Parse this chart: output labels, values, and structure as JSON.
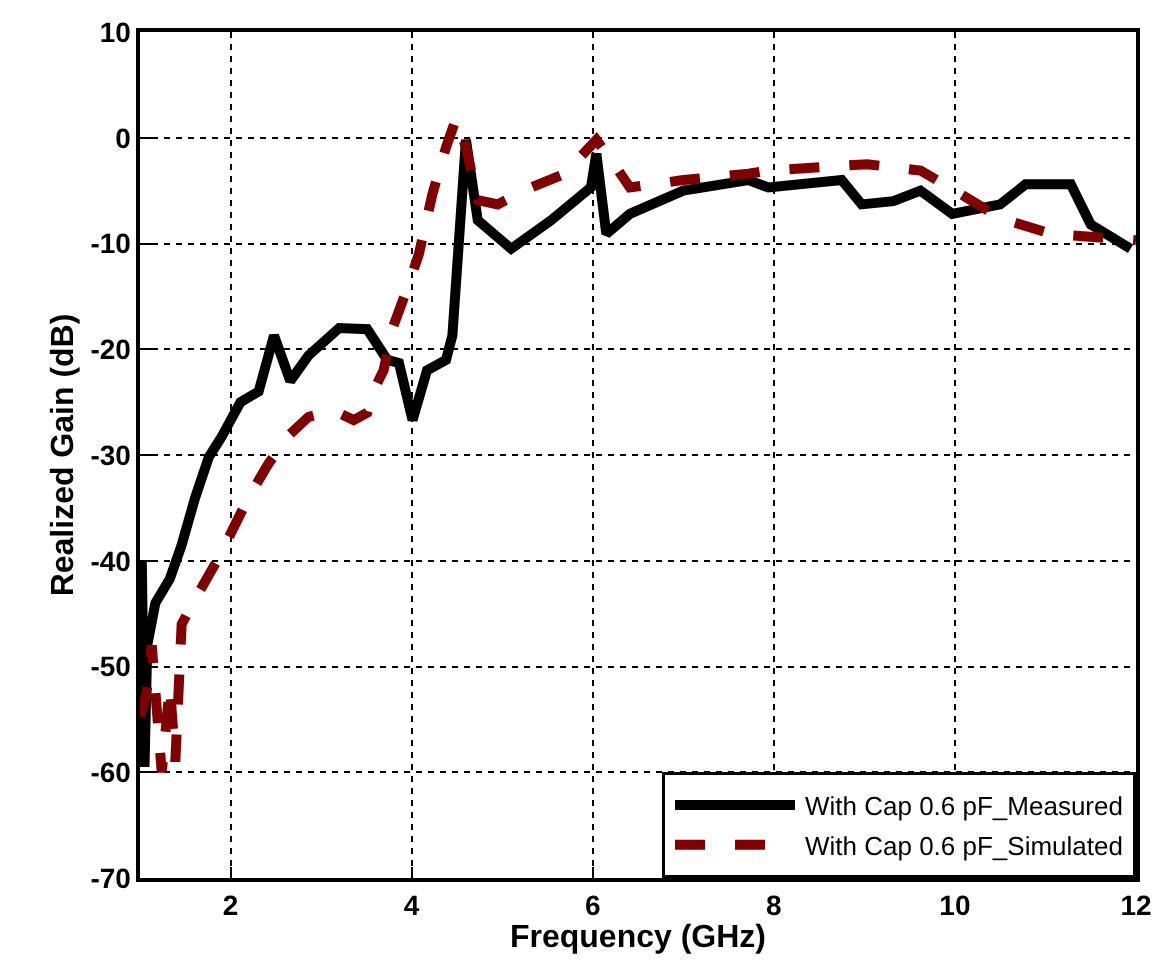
{
  "chart_data": {
    "type": "line",
    "xlabel": "Frequency (GHz)",
    "ylabel": "Realized Gain (dB)",
    "xlim": [
      1,
      12
    ],
    "xticks": [
      2,
      4,
      6,
      8,
      10,
      12
    ],
    "ylim": [
      -70,
      10
    ],
    "yticks": [
      -70,
      -60,
      -50,
      -40,
      -30,
      -20,
      -10,
      0,
      10
    ],
    "grid": true,
    "legend": "bottom right",
    "marker": "none",
    "series": [
      {
        "name": "With Cap 0.6 pF_Measured",
        "color": "#000000",
        "line_style": "solid",
        "x": [
          1.0,
          1.02,
          1.05,
          1.08,
          1.17,
          1.33,
          1.46,
          1.61,
          1.76,
          1.9,
          2.11,
          2.31,
          2.48,
          2.66,
          2.86,
          3.2,
          3.51,
          3.73,
          3.86,
          4.01,
          4.17,
          4.38,
          4.45,
          4.6,
          4.73,
          5.1,
          5.54,
          5.98,
          6.04,
          6.15,
          6.41,
          7.0,
          7.72,
          7.94,
          8.75,
          8.97,
          9.32,
          9.62,
          9.97,
          10.5,
          10.78,
          11.28,
          11.5,
          11.94
        ],
        "values": [
          -55,
          -40,
          -59.5,
          -48,
          -44,
          -41.7,
          -38.5,
          -34,
          -30.2,
          -28.3,
          -25,
          -24,
          -18.7,
          -23,
          -20.6,
          -18,
          -18.1,
          -21,
          -21.3,
          -26.7,
          -22,
          -21,
          -18.7,
          -0.2,
          -7.8,
          -10.5,
          -7.8,
          -4.7,
          -1.5,
          -9.1,
          -7.2,
          -5,
          -4,
          -4.7,
          -4,
          -6.3,
          -6,
          -5,
          -7.2,
          -6.3,
          -4.4,
          -4.4,
          -8.2,
          -10.5
        ]
      },
      {
        "name": "With Cap 0.6 pF_Simulated",
        "color": "#800000",
        "line_style": "dashed",
        "x": [
          1.0,
          1.07,
          1.13,
          1.24,
          1.33,
          1.39,
          1.46,
          1.61,
          1.83,
          1.98,
          2.2,
          2.42,
          2.66,
          2.86,
          3.14,
          3.36,
          3.51,
          3.58,
          3.69,
          3.79,
          3.95,
          4.08,
          4.23,
          4.38,
          4.49,
          4.6,
          4.73,
          4.95,
          5.32,
          5.69,
          6.04,
          6.26,
          6.41,
          7.0,
          7.72,
          7.94,
          9.03,
          9.62,
          10.06,
          10.5,
          11.07,
          12.0
        ],
        "values": [
          -54.7,
          -52.6,
          -48,
          -60,
          -51.8,
          -59,
          -46,
          -43.6,
          -40.3,
          -37.8,
          -34,
          -30.8,
          -28,
          -26.4,
          -25.8,
          -26.7,
          -26,
          -23.9,
          -22,
          -18,
          -14.3,
          -11,
          -5.3,
          -0.9,
          1.8,
          -0.9,
          -5.9,
          -6.3,
          -4.7,
          -3.4,
          -0.2,
          -2.8,
          -4.7,
          -4,
          -3.4,
          -3.1,
          -2.5,
          -3.1,
          -5.3,
          -7.6,
          -9.1,
          -9.7
        ]
      }
    ]
  }
}
